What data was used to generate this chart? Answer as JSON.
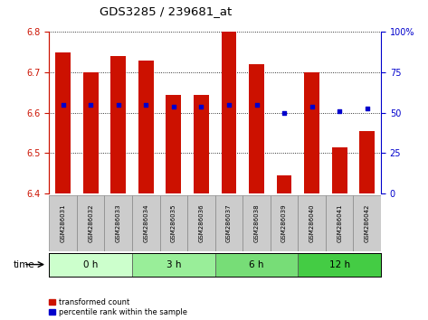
{
  "title": "GDS3285 / 239681_at",
  "samples": [
    "GSM286031",
    "GSM286032",
    "GSM286033",
    "GSM286034",
    "GSM286035",
    "GSM286036",
    "GSM286037",
    "GSM286038",
    "GSM286039",
    "GSM286040",
    "GSM286041",
    "GSM286042"
  ],
  "bar_values": [
    6.75,
    6.7,
    6.74,
    6.73,
    6.645,
    6.645,
    6.8,
    6.72,
    6.445,
    6.7,
    6.515,
    6.555
  ],
  "dot_values": [
    6.62,
    6.62,
    6.62,
    6.62,
    6.615,
    6.615,
    6.62,
    6.62,
    6.6,
    6.615,
    6.605,
    6.61
  ],
  "bar_bottom": 6.4,
  "ylim": [
    6.4,
    6.8
  ],
  "y2lim": [
    0,
    100
  ],
  "yticks": [
    6.4,
    6.5,
    6.6,
    6.7,
    6.8
  ],
  "y2ticks": [
    0,
    25,
    50,
    75,
    100
  ],
  "bar_color": "#cc1100",
  "dot_color": "#0000cc",
  "groups": [
    {
      "label": "0 h",
      "start": 0,
      "end": 3,
      "color": "#ccffcc"
    },
    {
      "label": "3 h",
      "start": 3,
      "end": 6,
      "color": "#99ee99"
    },
    {
      "label": "6 h",
      "start": 6,
      "end": 9,
      "color": "#77dd77"
    },
    {
      "label": "12 h",
      "start": 9,
      "end": 12,
      "color": "#44cc44"
    }
  ],
  "time_label": "time",
  "legend_bar": "transformed count",
  "legend_dot": "percentile rank within the sample",
  "left_axis_color": "#cc1100",
  "right_axis_color": "#0000cc",
  "bar_width": 0.55,
  "tick_box_color": "#cccccc",
  "figsize": [
    4.73,
    3.54
  ],
  "dpi": 100
}
